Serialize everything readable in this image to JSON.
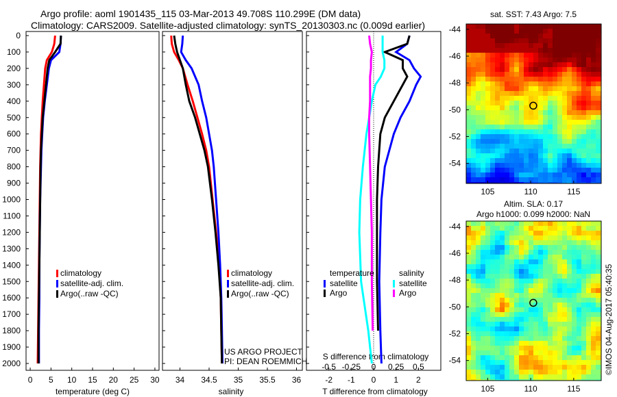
{
  "header": {
    "line1": "Argo profile: aoml 1901435_115 03-Mar-2013 49.708S 110.299E (DM data)",
    "line2": "Climatology: CARS2009. Satellite-adjusted climatology: synTS_20130303.nc (0.009d earlier)"
  },
  "colors": {
    "climatology": "#ff0000",
    "satellite": "#0000ff",
    "argo": "#000000",
    "sal_satellite": "#00ffff",
    "sal_argo": "#ff00ff"
  },
  "chart_data": [
    {
      "type": "line",
      "name": "temperature",
      "xlabel": "temperature (deg C)",
      "ylabel": "",
      "xlim": [
        -1,
        31
      ],
      "ylim": [
        2050,
        0
      ],
      "xticks": [
        "0",
        "5",
        "10",
        "15",
        "20",
        "25",
        "30"
      ],
      "yticks": [
        "0",
        "100",
        "200",
        "300",
        "400",
        "500",
        "600",
        "700",
        "800",
        "900",
        "1000",
        "1100",
        "1200",
        "1300",
        "1400",
        "1500",
        "1600",
        "1700",
        "1800",
        "1900",
        "2000"
      ],
      "pressure": [
        0,
        50,
        100,
        150,
        200,
        300,
        400,
        500,
        600,
        700,
        800,
        1000,
        1200,
        1400,
        1600,
        1800,
        2000
      ],
      "series": [
        {
          "name": "climatology",
          "values": [
            6.0,
            5.8,
            5.2,
            4.0,
            3.6,
            3.3,
            3.0,
            2.8,
            2.6,
            2.5,
            2.4,
            2.3,
            2.2,
            2.1,
            2.0,
            1.9,
            1.8
          ]
        },
        {
          "name": "satellite-adj. clim.",
          "values": [
            7.4,
            7.3,
            7.0,
            5.0,
            4.5,
            4.0,
            3.5,
            3.1,
            2.9,
            2.7,
            2.6,
            2.4,
            2.3,
            2.2,
            2.2,
            2.1,
            2.1
          ]
        },
        {
          "name": "Argo(..raw -QC)",
          "values": [
            7.4,
            7.3,
            6.0,
            4.6,
            4.2,
            3.8,
            3.4,
            3.0,
            2.8,
            2.6,
            2.5,
            2.4,
            2.3,
            2.2,
            2.1,
            2.0,
            2.0
          ]
        }
      ],
      "legend": [
        "climatology",
        "satellite-adj. clim.",
        "Argo(..raw -QC)"
      ]
    },
    {
      "type": "line",
      "name": "salinity",
      "xlabel": "salinity",
      "xlim": [
        33.7,
        36.1
      ],
      "ylim": [
        2050,
        0
      ],
      "xticks": [
        "34",
        "34.5",
        "35",
        "35.5",
        "36"
      ],
      "pressure": [
        0,
        50,
        100,
        150,
        200,
        300,
        400,
        500,
        600,
        700,
        800,
        1000,
        1200,
        1400,
        1600,
        1800,
        2000
      ],
      "series": [
        {
          "name": "climatology",
          "values": [
            33.85,
            33.86,
            33.9,
            33.98,
            34.05,
            34.13,
            34.22,
            34.3,
            34.38,
            34.45,
            34.5,
            34.56,
            34.62,
            34.67,
            34.7,
            34.71,
            34.72
          ]
        },
        {
          "name": "satellite-adj. clim.",
          "values": [
            34.05,
            34.04,
            34.02,
            34.1,
            34.2,
            34.32,
            34.38,
            34.45,
            34.5,
            34.55,
            34.58,
            34.62,
            34.66,
            34.69,
            34.71,
            34.72,
            34.73
          ]
        },
        {
          "name": "Argo(..raw -QC)",
          "values": [
            33.9,
            33.92,
            33.95,
            34.0,
            34.05,
            34.1,
            34.16,
            34.26,
            34.34,
            34.42,
            34.48,
            34.55,
            34.61,
            34.66,
            34.7,
            34.71,
            34.72
          ]
        }
      ],
      "legend": [
        "climatology",
        "satellite-adj. clim.",
        "Argo(..raw -QC)"
      ],
      "annotation": [
        "US ARGO PROJECT",
        "PI: DEAN ROEMMICH"
      ]
    },
    {
      "type": "line",
      "name": "difference",
      "xlabel": "T difference from climatology",
      "x2label": "S difference from climatology",
      "xlim": [
        -3,
        3
      ],
      "x2lim": [
        -0.75,
        0.75
      ],
      "ylim": [
        2050,
        0
      ],
      "xticks": [
        "-2",
        "-1",
        "0",
        "1",
        "2"
      ],
      "x2ticks": [
        "-0.5",
        "-0.25",
        "0",
        "0.25",
        "0.5"
      ],
      "pressure": [
        0,
        50,
        100,
        150,
        200,
        250,
        300,
        400,
        500,
        600,
        800,
        1000,
        1200,
        1500,
        1800,
        2000
      ],
      "series": [
        {
          "name": "temperature satellite",
          "axis": "T",
          "values": [
            1.6,
            1.5,
            1.0,
            1.6,
            1.8,
            2.1,
            1.9,
            1.6,
            1.2,
            0.9,
            0.5,
            0.35,
            0.3,
            0.25,
            0.3,
            0.35
          ]
        },
        {
          "name": "temperature Argo",
          "axis": "T",
          "values": [
            1.6,
            1.5,
            0.5,
            1.3,
            1.3,
            1.5,
            1.3,
            0.9,
            0.5,
            0.3,
            0.2,
            0.15,
            0.15,
            0.15,
            0.2,
            null
          ]
        },
        {
          "name": "salinity satellite",
          "axis": "S",
          "values": [
            0.1,
            0.1,
            0.1,
            0.12,
            0.12,
            0.08,
            0.02,
            -0.02,
            -0.05,
            -0.08,
            -0.12,
            -0.15,
            -0.16,
            -0.14,
            -0.06,
            -0.02
          ]
        },
        {
          "name": "salinity Argo",
          "axis": "S",
          "values": [
            -0.05,
            -0.04,
            -0.02,
            -0.03,
            -0.03,
            -0.04,
            -0.04,
            -0.04,
            -0.05,
            -0.05,
            -0.04,
            -0.03,
            -0.02,
            -0.02,
            -0.01,
            null
          ]
        }
      ],
      "legend_titles": [
        "temperature",
        "salinity"
      ],
      "legend": [
        "satellite",
        "Argo",
        "satellite",
        "Argo"
      ]
    },
    {
      "type": "heatmap",
      "name": "sst-map",
      "title": "sat. SST: 7.43 Argo: 7.5",
      "xticks": [
        "105",
        "110",
        "115"
      ],
      "yticks": [
        "-44",
        "-46",
        "-48",
        "-50",
        "-52",
        "-54"
      ],
      "xlim": [
        102.5,
        118.2
      ],
      "ylim": [
        -55.5,
        -43.6
      ],
      "marker": {
        "lon": 110.3,
        "lat": -49.7
      }
    },
    {
      "type": "heatmap",
      "name": "sla-map",
      "title": "Altim. SLA: 0.17",
      "subtitle": "Argo h1000: 0.099 h2000: NaN",
      "xticks": [
        "105",
        "110",
        "115"
      ],
      "yticks": [
        "-44",
        "-46",
        "-48",
        "-50",
        "-52",
        "-54"
      ],
      "xlim": [
        102.5,
        118.2
      ],
      "ylim": [
        -55.5,
        -43.6
      ],
      "marker": {
        "lon": 110.3,
        "lat": -49.7
      }
    }
  ],
  "credit": "©IMOS 04-Aug-2017 05:40:35"
}
